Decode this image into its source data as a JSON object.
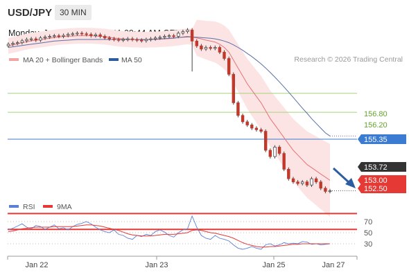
{
  "header": {
    "symbol": "USD/JPY",
    "interval": "30 MIN",
    "datetime": "Monday, January 26, 2026 11:09:44 AM CET",
    "credit": "Research © 2026 Trading Central"
  },
  "colors": {
    "candle_up": "#ffffff",
    "candle_down": "#c0392b",
    "bollinger": "#f4a3a3",
    "bollinger_fill": "#fde4e4",
    "ma50": "#5b6fa8",
    "support": "#e53935",
    "resistance": "#7cb342",
    "pivot": "#3b7bd1",
    "last": "#333333",
    "rsi": "#5b7fd6",
    "rsi_ma": "#e53935"
  },
  "chart_data": [
    {
      "type": "candlestick",
      "legend": [
        {
          "name": "MA 20 + Bollinger Bands",
          "color": "#f4a3a3"
        },
        {
          "name": "MA 50",
          "color": "#2d5da1"
        }
      ],
      "ylim": [
        152.2,
        158.2
      ],
      "x_ticks": [
        {
          "label": "Jan 22",
          "pos": 0.11
        },
        {
          "label": "Jan 23",
          "pos": 0.43
        },
        {
          "label": "Jan 25",
          "pos": 0.76
        },
        {
          "label": "Jan 27",
          "pos": 0.92
        }
      ],
      "levels": [
        {
          "value": 156.8,
          "label": "156.80",
          "kind": "resistance"
        },
        {
          "value": 156.2,
          "label": "156.20",
          "kind": "resistance"
        },
        {
          "value": 155.35,
          "label": "155.35",
          "kind": "pivot"
        },
        {
          "value": 153.72,
          "label": "153.72",
          "kind": "last"
        },
        {
          "value": 153.0,
          "label": "153.00",
          "kind": "support"
        },
        {
          "value": 152.5,
          "label": "152.50",
          "kind": "support"
        }
      ],
      "close_series": [
        158.35,
        158.38,
        158.4,
        158.46,
        158.5,
        158.52,
        158.48,
        158.55,
        158.58,
        158.6,
        158.62,
        158.6,
        158.63,
        158.66,
        158.68,
        158.7,
        158.68,
        158.66,
        158.62,
        158.65,
        158.6,
        158.55,
        158.52,
        158.5,
        158.48,
        158.5,
        158.52,
        158.5,
        158.48,
        158.46,
        158.5,
        158.52,
        158.55,
        158.57,
        158.6,
        158.62,
        158.6,
        158.7,
        158.75,
        158.8,
        158.45,
        158.3,
        158.2,
        158.25,
        158.22,
        158.25,
        158.1,
        157.9,
        157.4,
        156.5,
        156.1,
        155.9,
        155.8,
        155.7,
        155.65,
        155.6,
        155.0,
        154.8,
        155.1,
        154.9,
        154.4,
        154.1,
        154.0,
        153.95,
        154.0,
        153.9,
        154.1,
        154.0,
        153.8,
        153.7,
        153.72
      ],
      "ma20": [
        158.3,
        158.33,
        158.36,
        158.4,
        158.43,
        158.46,
        158.48,
        158.5,
        158.52,
        158.54,
        158.56,
        158.58,
        158.59,
        158.6,
        158.61,
        158.62,
        158.62,
        158.62,
        158.62,
        158.61,
        158.6,
        158.59,
        158.57,
        158.55,
        158.53,
        158.52,
        158.51,
        158.5,
        158.5,
        158.49,
        158.49,
        158.5,
        158.5,
        158.51,
        158.52,
        158.53,
        158.54,
        158.56,
        158.58,
        158.6,
        158.58,
        158.55,
        158.52,
        158.48,
        158.45,
        158.42,
        158.35,
        158.25,
        158.1,
        157.85,
        157.6,
        157.35,
        157.1,
        156.9,
        156.7,
        156.5,
        156.25,
        156.0,
        155.8,
        155.6,
        155.4,
        155.2,
        155.0,
        154.85,
        154.7,
        154.55,
        154.45,
        154.35,
        154.25,
        154.15,
        154.05
      ],
      "ma50": [
        158.25,
        158.27,
        158.29,
        158.31,
        158.33,
        158.35,
        158.37,
        158.39,
        158.41,
        158.43,
        158.45,
        158.46,
        158.47,
        158.48,
        158.49,
        158.5,
        158.5,
        158.5,
        158.5,
        158.5,
        158.5,
        158.5,
        158.5,
        158.5,
        158.5,
        158.5,
        158.5,
        158.5,
        158.5,
        158.5,
        158.5,
        158.5,
        158.51,
        158.52,
        158.53,
        158.54,
        158.55,
        158.56,
        158.57,
        158.58,
        158.58,
        158.57,
        158.56,
        158.55,
        158.54,
        158.52,
        158.49,
        158.45,
        158.4,
        158.33,
        158.25,
        158.16,
        158.06,
        157.96,
        157.85,
        157.73,
        157.6,
        157.46,
        157.31,
        157.16,
        157.0,
        156.84,
        156.67,
        156.5,
        156.33,
        156.17,
        156.0,
        155.85,
        155.7,
        155.55,
        155.45
      ]
    },
    {
      "type": "line",
      "legend": [
        {
          "name": "RSI",
          "color": "#5b7fd6"
        },
        {
          "name": "9MA",
          "color": "#e53935"
        }
      ],
      "ylim": [
        0,
        100
      ],
      "levels": [
        {
          "value": 70,
          "label": "70"
        },
        {
          "value": 50,
          "label": "50"
        },
        {
          "value": 30,
          "label": "30"
        }
      ],
      "series": [
        {
          "name": "RSI",
          "values": [
            55,
            58,
            62,
            66,
            60,
            57,
            63,
            61,
            56,
            60,
            64,
            57,
            59,
            55,
            61,
            65,
            67,
            70,
            66,
            60,
            55,
            52,
            50,
            55,
            47,
            45,
            40,
            38,
            45,
            43,
            47,
            45,
            52,
            55,
            51,
            45,
            42,
            50,
            55,
            57,
            80,
            60,
            45,
            40,
            38,
            45,
            40,
            38,
            35,
            28,
            22,
            20,
            22,
            25,
            22,
            20,
            28,
            30,
            26,
            28,
            32,
            30,
            31,
            30,
            34,
            33,
            29,
            30,
            28,
            29,
            30
          ]
        },
        {
          "name": "9MA",
          "values": [
            52,
            53,
            55,
            57,
            58,
            59,
            60,
            60,
            60,
            60,
            61,
            61,
            61,
            61,
            61,
            62,
            63,
            64,
            64,
            63,
            62,
            60,
            58,
            56,
            54,
            51,
            48,
            46,
            45,
            44,
            44,
            44,
            45,
            46,
            47,
            47,
            47,
            48,
            49,
            50,
            54,
            55,
            54,
            52,
            50,
            49,
            47,
            45,
            43,
            40,
            36,
            32,
            29,
            27,
            25,
            24,
            24,
            25,
            25,
            26,
            27,
            28,
            29,
            29,
            30,
            30,
            30,
            30,
            30,
            30,
            30
          ]
        }
      ]
    }
  ]
}
